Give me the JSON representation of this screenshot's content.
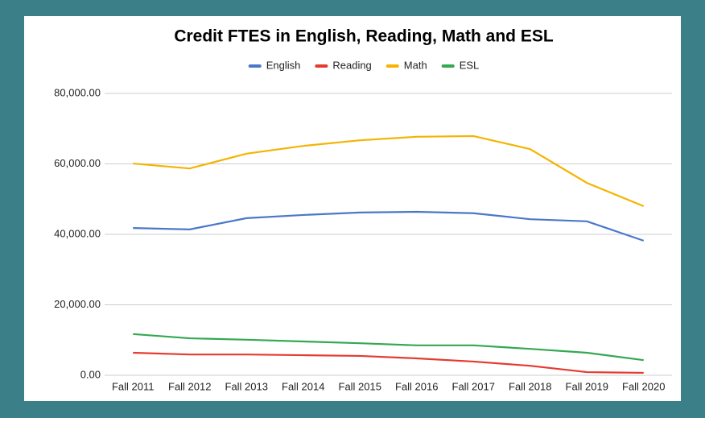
{
  "chart_data": {
    "type": "line",
    "title": "Credit FTES in English, Reading, Math and ESL",
    "categories": [
      "Fall 2011",
      "Fall 2012",
      "Fall 2013",
      "Fall 2014",
      "Fall 2015",
      "Fall 2016",
      "Fall 2017",
      "Fall 2018",
      "Fall 2019",
      "Fall 2020"
    ],
    "series": [
      {
        "name": "English",
        "color": "#4a78c8",
        "values": [
          41800,
          41400,
          44600,
          45500,
          46200,
          46400,
          46000,
          44300,
          43700,
          38200
        ]
      },
      {
        "name": "Reading",
        "color": "#e53a2f",
        "values": [
          6400,
          5900,
          5900,
          5700,
          5500,
          4800,
          3900,
          2700,
          900,
          700
        ]
      },
      {
        "name": "Math",
        "color": "#f4b400",
        "values": [
          60100,
          58700,
          62900,
          65100,
          66700,
          67700,
          67900,
          64200,
          54600,
          48000
        ]
      },
      {
        "name": "ESL",
        "color": "#34a853",
        "values": [
          11700,
          10500,
          10100,
          9600,
          9100,
          8500,
          8500,
          7500,
          6400,
          4300
        ]
      }
    ],
    "ylim": [
      0,
      80000
    ],
    "yticks": [
      {
        "value": 0,
        "label": "0.00"
      },
      {
        "value": 20000,
        "label": "20,000.00"
      },
      {
        "value": 40000,
        "label": "40,000.00"
      },
      {
        "value": 60000,
        "label": "60,000.00"
      },
      {
        "value": 80000,
        "label": "80,000.00"
      }
    ],
    "grid": true,
    "legend": "top"
  }
}
